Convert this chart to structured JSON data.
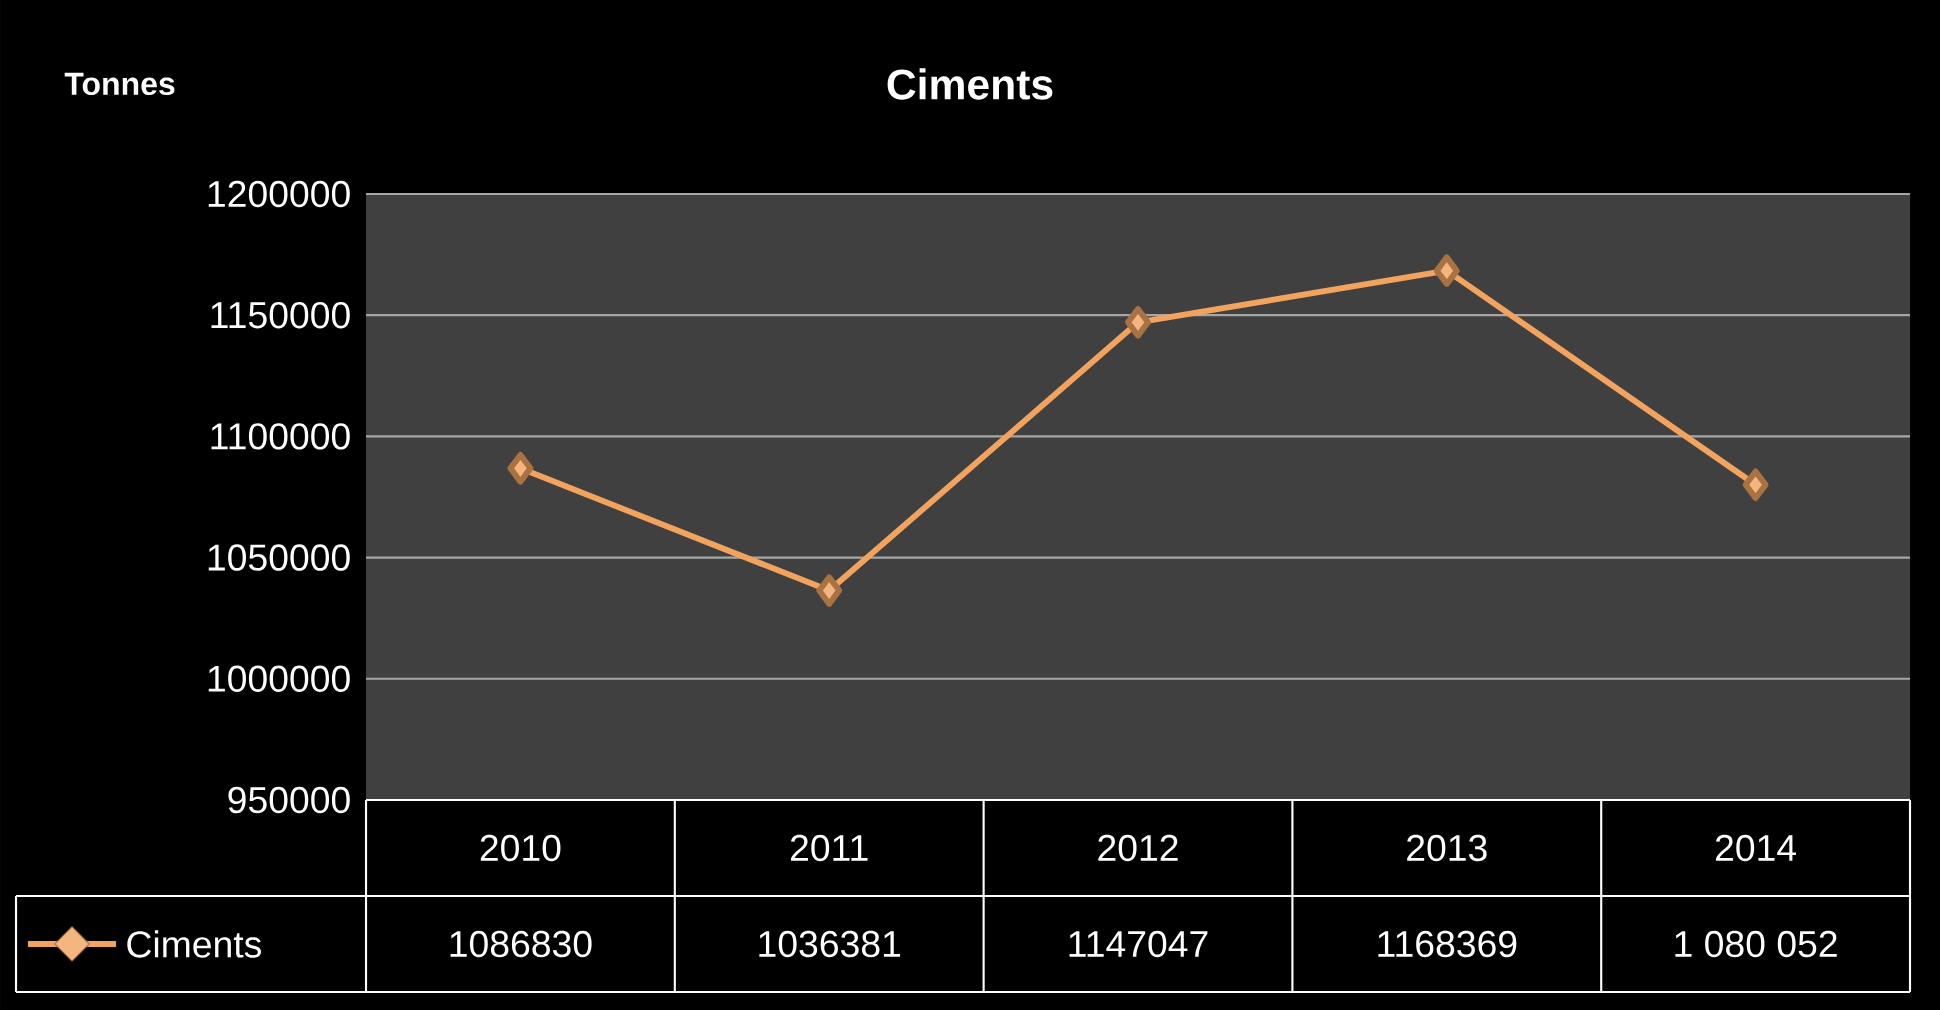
{
  "chart_data": {
    "type": "line",
    "title": "Ciments",
    "ylabel": "Tonnes",
    "categories": [
      "2010",
      "2011",
      "2012",
      "2013",
      "2014"
    ],
    "series": [
      {
        "name": "Ciments",
        "color": "#f2a35e",
        "values": [
          1086830,
          1036381,
          1147047,
          1168369,
          1080052
        ],
        "value_labels": [
          "1086830",
          "1036381",
          "1147047",
          "1168369",
          "1 080 052"
        ]
      }
    ],
    "ylim": [
      950000,
      1200000
    ],
    "yticks": [
      950000,
      1000000,
      1050000,
      1100000,
      1150000,
      1200000
    ],
    "grid": "y",
    "legend": "bottom",
    "marker": "diamond",
    "line_style": "solid"
  }
}
